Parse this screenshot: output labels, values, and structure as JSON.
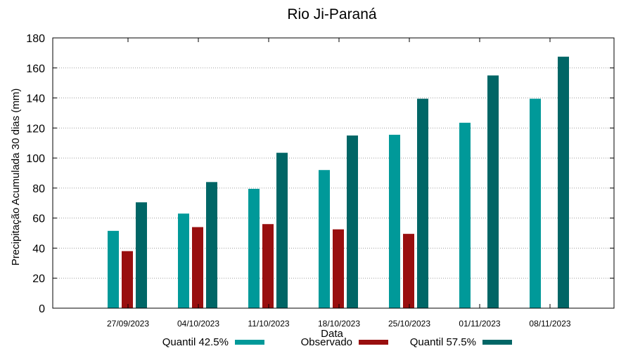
{
  "chart_data": {
    "type": "bar",
    "title": "Rio Ji-Paraná",
    "xlabel": "Data",
    "ylabel": "Precipitação Acumulada 30 dias (mm)",
    "ylim": [
      0,
      180
    ],
    "yticks": [
      0,
      20,
      40,
      60,
      80,
      100,
      120,
      140,
      160,
      180
    ],
    "grid": true,
    "legend_position": "bottom",
    "categories": [
      "27/09/2023",
      "04/10/2023",
      "11/10/2023",
      "18/10/2023",
      "25/10/2023",
      "01/11/2023",
      "08/11/2023"
    ],
    "series": [
      {
        "name": "Quantil 42.5%",
        "color": "#009999",
        "values": [
          51.5,
          63,
          79.5,
          92,
          115.5,
          123.5,
          139.5
        ]
      },
      {
        "name": "Observado",
        "color": "#990f0f",
        "values": [
          38,
          54,
          56,
          52.5,
          49.5,
          null,
          null
        ]
      },
      {
        "name": "Quantil 57.5%",
        "color": "#006666",
        "values": [
          70.5,
          84,
          103.5,
          115,
          139.5,
          155,
          167.5
        ]
      }
    ]
  }
}
